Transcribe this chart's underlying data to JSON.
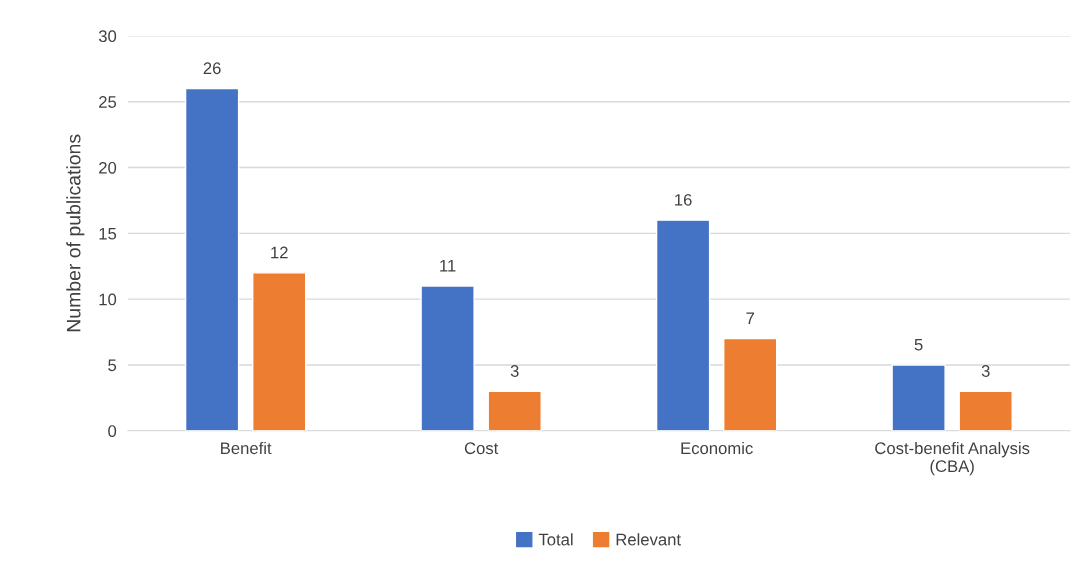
{
  "chart_data": {
    "type": "bar",
    "categories": [
      "Benefit",
      "Cost",
      "Economic",
      "Cost-benefit Analysis\n(CBA)"
    ],
    "series": [
      {
        "name": "Total",
        "color": "#4472c4",
        "values": [
          26,
          11,
          16,
          5
        ]
      },
      {
        "name": "Relevant",
        "color": "#ed7d31",
        "values": [
          12,
          3,
          7,
          3
        ]
      }
    ],
    "ylabel": "Number of publications",
    "ylim": [
      0,
      30
    ],
    "yticks": [
      0,
      5,
      10,
      15,
      20,
      25,
      30
    ],
    "grid": "y",
    "legend": "bottom",
    "data_labels": true
  }
}
